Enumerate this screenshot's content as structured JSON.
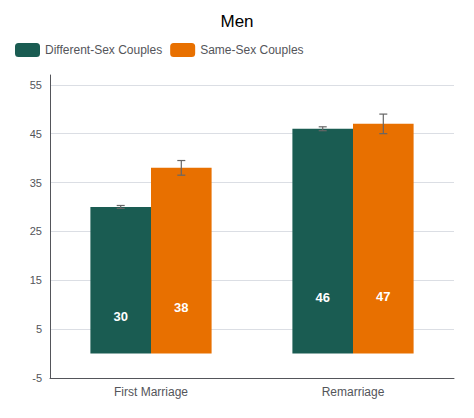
{
  "chart_data": {
    "type": "bar",
    "title": "Men",
    "categories": [
      "First Marriage",
      "Remarriage"
    ],
    "series": [
      {
        "name": "Different-Sex Couples",
        "color": "#1a5c52",
        "values": [
          30,
          46
        ],
        "errors": [
          0.3,
          0.4
        ]
      },
      {
        "name": "Same-Sex Couples",
        "color": "#e87000",
        "values": [
          38,
          47
        ],
        "errors": [
          1.5,
          2.0
        ]
      }
    ],
    "ylim": [
      -5,
      57
    ],
    "yticks": [
      -5,
      5,
      15,
      25,
      35,
      45,
      55
    ],
    "grid": true,
    "legend": "upper left",
    "data_labels": true
  }
}
